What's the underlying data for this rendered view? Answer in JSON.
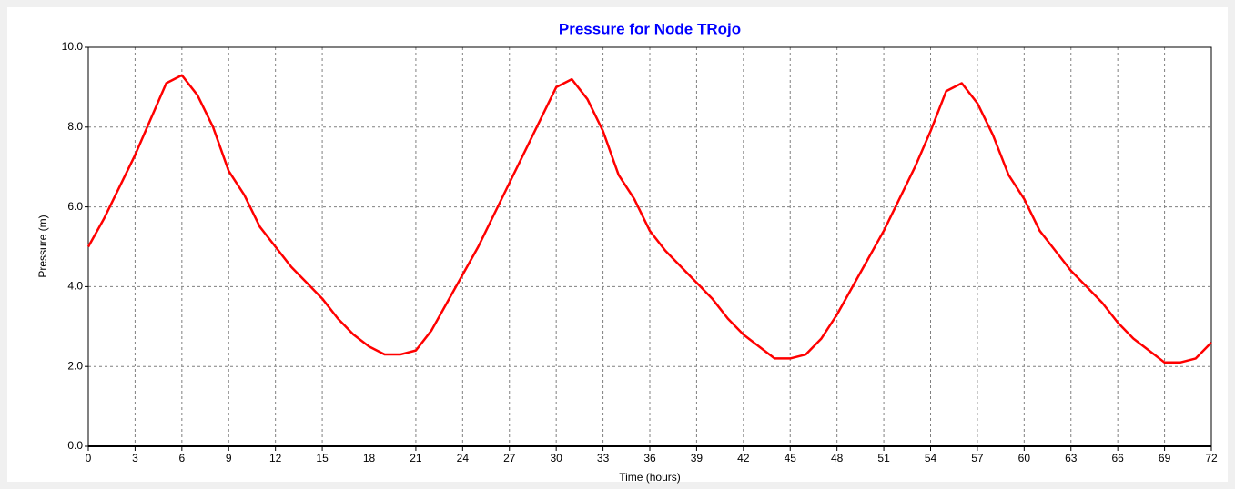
{
  "chart_data": {
    "type": "line",
    "title": "Pressure for Node TRojo",
    "xlabel": "Time (hours)",
    "ylabel": "Pressure (m)",
    "x": [
      0,
      1,
      2,
      3,
      4,
      5,
      6,
      7,
      8,
      9,
      10,
      11,
      12,
      13,
      14,
      15,
      16,
      17,
      18,
      19,
      20,
      21,
      22,
      23,
      24,
      25,
      26,
      27,
      28,
      29,
      30,
      31,
      32,
      33,
      34,
      35,
      36,
      37,
      38,
      39,
      40,
      41,
      42,
      43,
      44,
      45,
      46,
      47,
      48,
      49,
      50,
      51,
      52,
      53,
      54,
      55,
      56,
      57,
      58,
      59,
      60,
      61,
      62,
      63,
      64,
      65,
      66,
      67,
      68,
      69,
      70,
      71,
      72
    ],
    "values": [
      5.0,
      5.7,
      6.5,
      7.3,
      8.2,
      9.1,
      9.3,
      8.8,
      8.0,
      6.9,
      6.3,
      5.5,
      5.0,
      4.5,
      4.1,
      3.7,
      3.2,
      2.8,
      2.5,
      2.3,
      2.3,
      2.4,
      2.9,
      3.6,
      4.3,
      5.0,
      5.8,
      6.6,
      7.4,
      8.2,
      9.0,
      9.2,
      8.7,
      7.9,
      6.8,
      6.2,
      5.4,
      4.9,
      4.5,
      4.1,
      3.7,
      3.2,
      2.8,
      2.5,
      2.2,
      2.2,
      2.3,
      2.7,
      3.3,
      4.0,
      4.7,
      5.4,
      6.2,
      7.0,
      7.9,
      8.9,
      9.1,
      8.6,
      7.8,
      6.8,
      6.2,
      5.4,
      4.9,
      4.4,
      4.0,
      3.6,
      3.1,
      2.7,
      2.4,
      2.1,
      2.1,
      2.2,
      2.6
    ],
    "color": "#ff0000",
    "title_color": "#0000ff",
    "xlim": [
      0,
      72
    ],
    "xticks": [
      0,
      3,
      6,
      9,
      12,
      15,
      18,
      21,
      24,
      27,
      30,
      33,
      36,
      39,
      42,
      45,
      48,
      51,
      54,
      57,
      60,
      63,
      66,
      69,
      72
    ],
    "ylim": [
      0,
      10
    ],
    "yticks": [
      {
        "value": 0,
        "label": "0.0"
      },
      {
        "value": 2,
        "label": "2.0"
      },
      {
        "value": 4,
        "label": "4.0"
      },
      {
        "value": 6,
        "label": "6.0"
      },
      {
        "value": 8,
        "label": "8.0"
      },
      {
        "value": 10,
        "label": "10.0"
      }
    ],
    "grid": true
  }
}
